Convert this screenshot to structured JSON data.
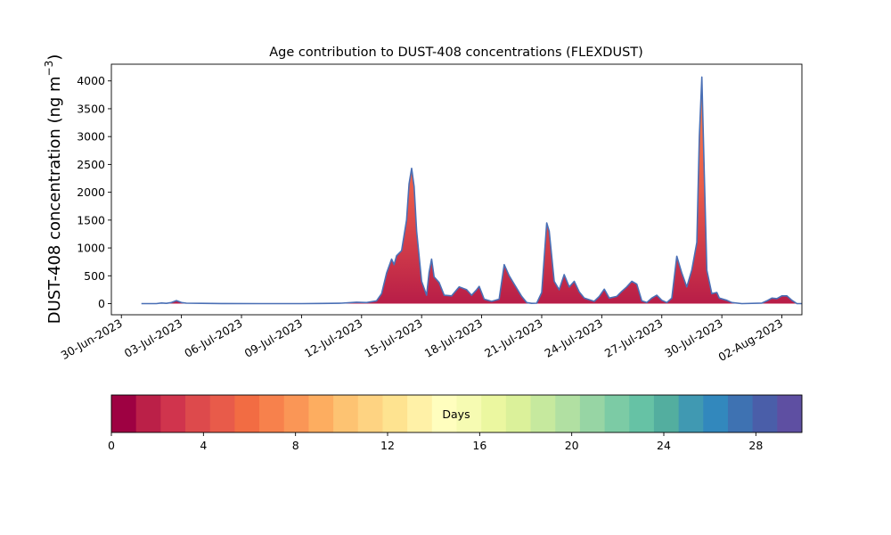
{
  "chart_data": [
    {
      "type": "area",
      "title": "Age contribution to DUST-408 concentrations (FLEXDUST)",
      "xlabel": "",
      "ylabel_main": "DUST-408 concentration (ng m",
      "ylabel_sup": "−3",
      "ylabel_close": ")",
      "xlim": [
        "2023-06-29T12:00",
        "2023-08-03T00:00"
      ],
      "ylim": [
        -200,
        4300
      ],
      "x_ticks": [
        "2023-06-30",
        "2023-07-03",
        "2023-07-06",
        "2023-07-09",
        "2023-07-12",
        "2023-07-15",
        "2023-07-18",
        "2023-07-21",
        "2023-07-24",
        "2023-07-27",
        "2023-07-30",
        "2023-08-02"
      ],
      "x_tick_labels": [
        "30-Jun-2023",
        "03-Jul-2023",
        "06-Jul-2023",
        "09-Jul-2023",
        "12-Jul-2023",
        "15-Jul-2023",
        "18-Jul-2023",
        "21-Jul-2023",
        "24-Jul-2023",
        "27-Jul-2023",
        "30-Jul-2023",
        "02-Aug-2023"
      ],
      "y_ticks": [
        0,
        500,
        1000,
        1500,
        2000,
        2500,
        3000,
        3500,
        4000
      ],
      "y_tick_labels": [
        "0",
        "500",
        "1000",
        "1500",
        "2000",
        "2500",
        "3000",
        "3500",
        "4000"
      ],
      "grid": false,
      "total_line_color": "#4a6fb5",
      "series": [
        {
          "values": [
            [
              "2023-07-01T00:00",
              0
            ],
            [
              "2023-07-01T18:00",
              0
            ],
            [
              "2023-07-02T00:00",
              12
            ],
            [
              "2023-07-02T06:00",
              5
            ],
            [
              "2023-07-02T12:00",
              20
            ],
            [
              "2023-07-02T18:00",
              55
            ],
            [
              "2023-07-03T00:00",
              20
            ],
            [
              "2023-07-03T06:00",
              8
            ],
            [
              "2023-07-04T00:00",
              5
            ],
            [
              "2023-07-05T00:00",
              2
            ],
            [
              "2023-07-07T00:00",
              0
            ],
            [
              "2023-07-09T00:00",
              0
            ],
            [
              "2023-07-10T00:00",
              3
            ],
            [
              "2023-07-11T00:00",
              8
            ],
            [
              "2023-07-11T18:00",
              25
            ],
            [
              "2023-07-12T06:00",
              20
            ],
            [
              "2023-07-12T18:00",
              50
            ],
            [
              "2023-07-13T00:00",
              180
            ],
            [
              "2023-07-13T06:00",
              550
            ],
            [
              "2023-07-13T12:00",
              800
            ],
            [
              "2023-07-13T15:00",
              700
            ],
            [
              "2023-07-13T18:00",
              860
            ],
            [
              "2023-07-14T00:00",
              950
            ],
            [
              "2023-07-14T06:00",
              1500
            ],
            [
              "2023-07-14T09:00",
              2150
            ],
            [
              "2023-07-14T12:00",
              2430
            ],
            [
              "2023-07-14T15:00",
              2100
            ],
            [
              "2023-07-14T18:00",
              1300
            ],
            [
              "2023-07-15T00:00",
              400
            ],
            [
              "2023-07-15T06:00",
              150
            ],
            [
              "2023-07-15T09:00",
              560
            ],
            [
              "2023-07-15T12:00",
              800
            ],
            [
              "2023-07-15T15:00",
              480
            ],
            [
              "2023-07-15T21:00",
              380
            ],
            [
              "2023-07-16T03:00",
              150
            ],
            [
              "2023-07-16T12:00",
              140
            ],
            [
              "2023-07-16T21:00",
              300
            ],
            [
              "2023-07-17T06:00",
              250
            ],
            [
              "2023-07-17T12:00",
              150
            ],
            [
              "2023-07-17T18:00",
              250
            ],
            [
              "2023-07-17T21:00",
              310
            ],
            [
              "2023-07-18T03:00",
              80
            ],
            [
              "2023-07-18T12:00",
              40
            ],
            [
              "2023-07-18T21:00",
              80
            ],
            [
              "2023-07-19T03:00",
              700
            ],
            [
              "2023-07-19T09:00",
              500
            ],
            [
              "2023-07-19T15:00",
              350
            ],
            [
              "2023-07-20T00:00",
              130
            ],
            [
              "2023-07-20T06:00",
              20
            ],
            [
              "2023-07-20T12:00",
              5
            ],
            [
              "2023-07-20T18:00",
              8
            ],
            [
              "2023-07-21T00:00",
              200
            ],
            [
              "2023-07-21T06:00",
              1450
            ],
            [
              "2023-07-21T09:00",
              1300
            ],
            [
              "2023-07-21T15:00",
              400
            ],
            [
              "2023-07-21T21:00",
              250
            ],
            [
              "2023-07-22T03:00",
              520
            ],
            [
              "2023-07-22T09:00",
              300
            ],
            [
              "2023-07-22T15:00",
              400
            ],
            [
              "2023-07-22T21:00",
              210
            ],
            [
              "2023-07-23T03:00",
              100
            ],
            [
              "2023-07-23T15:00",
              40
            ],
            [
              "2023-07-23T21:00",
              130
            ],
            [
              "2023-07-24T03:00",
              260
            ],
            [
              "2023-07-24T09:00",
              100
            ],
            [
              "2023-07-24T18:00",
              130
            ],
            [
              "2023-07-25T00:00",
              220
            ],
            [
              "2023-07-25T06:00",
              300
            ],
            [
              "2023-07-25T12:00",
              400
            ],
            [
              "2023-07-25T18:00",
              350
            ],
            [
              "2023-07-26T00:00",
              50
            ],
            [
              "2023-07-26T06:00",
              20
            ],
            [
              "2023-07-26T12:00",
              100
            ],
            [
              "2023-07-26T18:00",
              150
            ],
            [
              "2023-07-27T00:00",
              60
            ],
            [
              "2023-07-27T06:00",
              20
            ],
            [
              "2023-07-27T12:00",
              100
            ],
            [
              "2023-07-27T18:00",
              850
            ],
            [
              "2023-07-28T00:00",
              550
            ],
            [
              "2023-07-28T06:00",
              300
            ],
            [
              "2023-07-28T12:00",
              600
            ],
            [
              "2023-07-28T18:00",
              1100
            ],
            [
              "2023-07-28T21:00",
              3000
            ],
            [
              "2023-07-29T00:00",
              4070
            ],
            [
              "2023-07-29T03:00",
              2300
            ],
            [
              "2023-07-29T06:00",
              600
            ],
            [
              "2023-07-29T12:00",
              180
            ],
            [
              "2023-07-29T18:00",
              200
            ],
            [
              "2023-07-29T21:00",
              100
            ],
            [
              "2023-07-30T06:00",
              60
            ],
            [
              "2023-07-30T12:00",
              20
            ],
            [
              "2023-07-31T00:00",
              0
            ],
            [
              "2023-08-01T00:00",
              10
            ],
            [
              "2023-08-01T06:00",
              50
            ],
            [
              "2023-08-01T12:00",
              100
            ],
            [
              "2023-08-01T18:00",
              90
            ],
            [
              "2023-08-02T00:00",
              140
            ],
            [
              "2023-08-02T06:00",
              140
            ],
            [
              "2023-08-02T12:00",
              60
            ],
            [
              "2023-08-02T18:00",
              0
            ],
            [
              "2023-08-04T00:00",
              0
            ]
          ]
        }
      ]
    },
    {
      "type": "colorbar",
      "label": "Days",
      "range": [
        0,
        30
      ],
      "ticks": [
        0,
        4,
        8,
        12,
        16,
        20,
        24,
        28
      ],
      "tick_labels": [
        "0",
        "4",
        "8",
        "12",
        "16",
        "20",
        "24",
        "28"
      ],
      "colors": [
        "#9e0142",
        "#bb2048",
        "#d0344d",
        "#dd4a4c",
        "#e85b4a",
        "#f26c43",
        "#f7814c",
        "#fa9656",
        "#fdad60",
        "#fdc372",
        "#fed382",
        "#fee390",
        "#fff1a7",
        "#fffebe",
        "#f6fbb2",
        "#ebf7a0",
        "#dbf19a",
        "#c6e99e",
        "#b1e0a2",
        "#97d5a4",
        "#7ccba5",
        "#66c2a5",
        "#53ae9f",
        "#4099b2",
        "#3288bd",
        "#3e72b2",
        "#4a5ea9",
        "#5e4fa2"
      ]
    }
  ]
}
